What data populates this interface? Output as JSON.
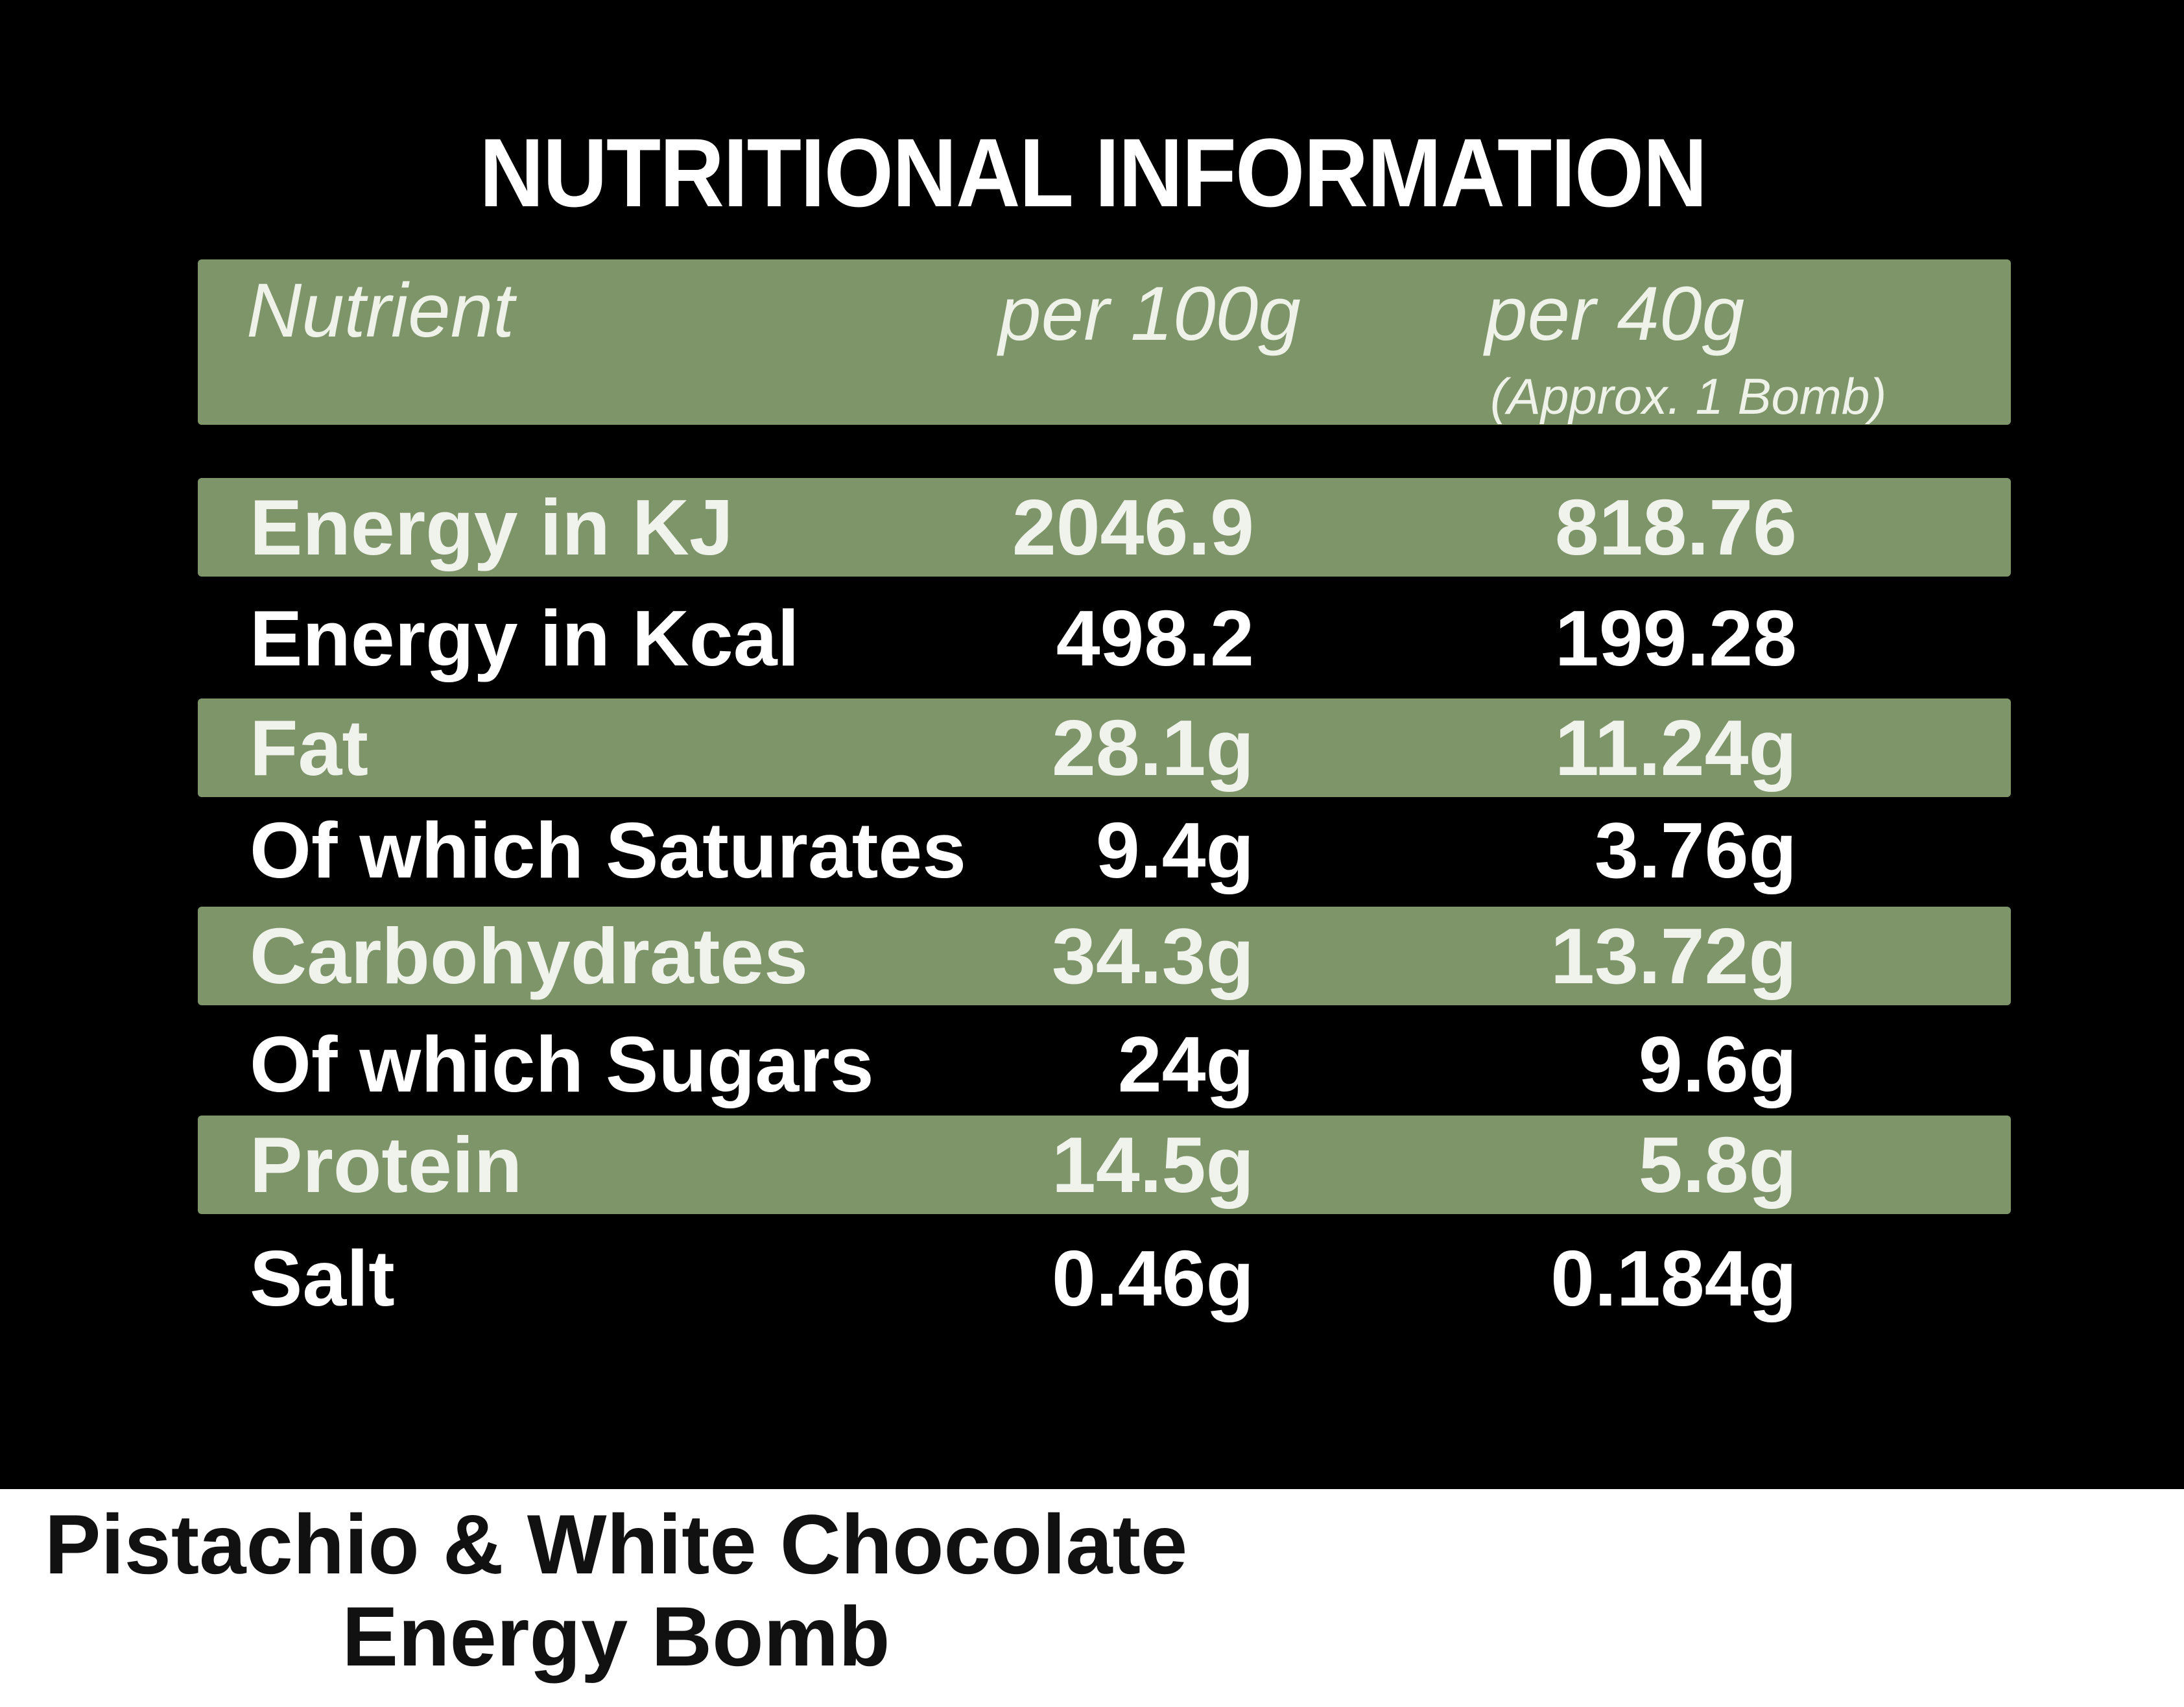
{
  "title": "NUTRITIONAL INFORMATION",
  "table": {
    "headers": {
      "nutrient": "Nutrient",
      "per_100g": "per 100g",
      "per_40g": "per 40g",
      "per_40g_note": "(Approx. 1 Bomb)"
    },
    "rows": [
      {
        "nutrient": "Energy in KJ",
        "per_100g": "2046.9",
        "per_40g": "818.76"
      },
      {
        "nutrient": "Energy in Kcal",
        "per_100g": "498.2",
        "per_40g": "199.28"
      },
      {
        "nutrient": "Fat",
        "per_100g": "28.1g",
        "per_40g": "11.24g"
      },
      {
        "nutrient": "Of which Saturates",
        "per_100g": "9.4g",
        "per_40g": "3.76g"
      },
      {
        "nutrient": "Carbohydrates",
        "per_100g": "34.3g",
        "per_40g": "13.72g"
      },
      {
        "nutrient": "Of which Sugars",
        "per_100g": "24g",
        "per_40g": "9.6g"
      },
      {
        "nutrient": "Protein",
        "per_100g": "14.5g",
        "per_40g": "5.8g"
      },
      {
        "nutrient": "Salt",
        "per_100g": "0.46g",
        "per_40g": "0.184g"
      }
    ]
  },
  "product": {
    "line1": "Pistachio & White Chocolate",
    "line2": "Energy Bomb"
  },
  "colors": {
    "panel_background": "#000000",
    "band_green": "#7e9469",
    "text_white": "#ffffff"
  }
}
